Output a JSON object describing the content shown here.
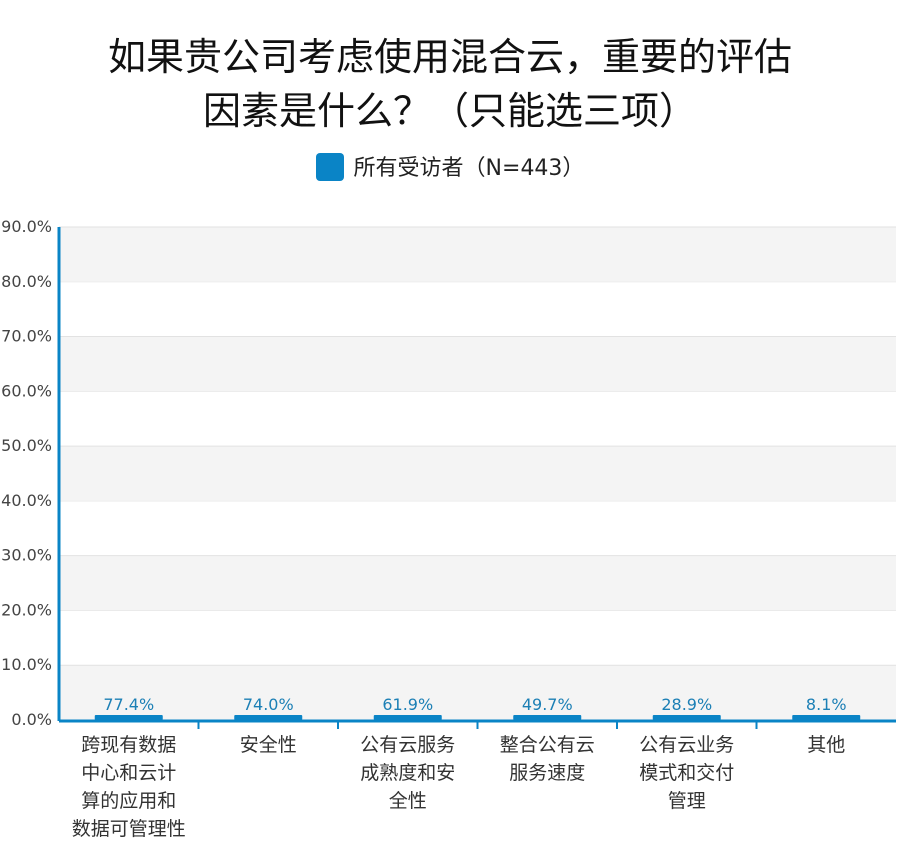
{
  "chart_data": {
    "type": "bar",
    "title_lines": [
      "如果贵公司考虑使用混合云，重要的评估",
      "因素是什么？（只能选三项）"
    ],
    "legend": {
      "name": "所有受访者（N=443）",
      "color": "#0a84c6"
    },
    "categories": [
      [
        "跨现有数据",
        "中心和云计",
        "算的应用和",
        "数据可管理性"
      ],
      [
        "安全性"
      ],
      [
        "公有云服务",
        "成熟度和安",
        "全性"
      ],
      [
        "整合公有云",
        "服务速度"
      ],
      [
        "公有云业务",
        "模式和交付",
        "管理"
      ],
      [
        "其他"
      ]
    ],
    "values": [
      77.4,
      74.0,
      61.9,
      49.7,
      28.9,
      8.1
    ],
    "value_labels": [
      "77.4%",
      "74.0%",
      "61.9%",
      "49.7%",
      "28.9%",
      "8.1%"
    ],
    "ylim": [
      0,
      90
    ],
    "yticks": [
      "0.0%",
      "10.0%",
      "20.0%",
      "30.0%",
      "40.0%",
      "50.0%",
      "60.0%",
      "70.0%",
      "80.0%",
      "90.0%"
    ],
    "grid": true,
    "legend_position": "top-center"
  }
}
